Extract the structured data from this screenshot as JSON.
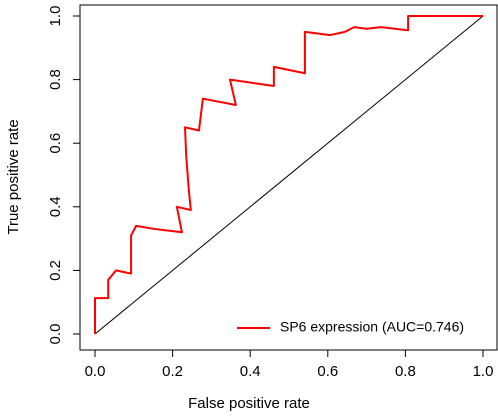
{
  "chart_data": {
    "type": "line",
    "xlabel": "False positive rate",
    "ylabel": "True positive rate",
    "xlim": [
      0,
      1
    ],
    "ylim": [
      0,
      1
    ],
    "xticks": [
      {
        "value": 0,
        "label": "0.0"
      },
      {
        "value": 0.2,
        "label": "0.2"
      },
      {
        "value": 0.4,
        "label": "0.4"
      },
      {
        "value": 0.6,
        "label": "0.6"
      },
      {
        "value": 0.8,
        "label": "0.8"
      },
      {
        "value": 1,
        "label": "1.0"
      }
    ],
    "yticks": [
      {
        "value": 0,
        "label": "0.0"
      },
      {
        "value": 0.2,
        "label": "0.2"
      },
      {
        "value": 0.4,
        "label": "0.4"
      },
      {
        "value": 0.6,
        "label": "0.6"
      },
      {
        "value": 0.8,
        "label": "0.8"
      },
      {
        "value": 1,
        "label": "1.0"
      }
    ],
    "legend": "bottom-right",
    "series": [
      {
        "name": "SP6 expression (AUC=0.746)",
        "color": "#ff0000",
        "x": [
          0,
          0,
          0.034,
          0.034,
          0.054,
          0.093,
          0.093,
          0.106,
          0.155,
          0.224,
          0.211,
          0.247,
          0.242,
          0.235,
          0.232,
          0.268,
          0.278,
          0.363,
          0.348,
          0.461,
          0.461,
          0.541,
          0.541,
          0.606,
          0.644,
          0.668,
          0.7,
          0.737,
          0.807,
          0.807,
          1
        ],
        "values": [
          0,
          0.113,
          0.113,
          0.17,
          0.2,
          0.19,
          0.31,
          0.34,
          0.33,
          0.32,
          0.4,
          0.39,
          0.45,
          0.56,
          0.65,
          0.64,
          0.74,
          0.72,
          0.8,
          0.78,
          0.84,
          0.82,
          0.95,
          0.94,
          0.95,
          0.965,
          0.96,
          0.965,
          0.955,
          1,
          1
        ]
      }
    ]
  }
}
